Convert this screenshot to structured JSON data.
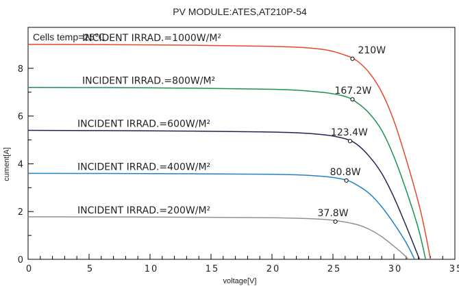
{
  "chart_data": {
    "type": "line",
    "title": "PV MODULE:ATES,AT210P-54",
    "xlabel": "voltage[V]",
    "ylabel": "cument[A]",
    "annotation": "Cells temp=25℃",
    "xlim": [
      0,
      35
    ],
    "ylim": [
      0,
      10
    ],
    "xticks": [
      0,
      5,
      10,
      15,
      20,
      25,
      30,
      35
    ],
    "yticks": [
      0,
      2,
      4,
      6,
      8
    ],
    "grid": false,
    "series": [
      {
        "name": "INCIDENT IRRAD.=1000W/M²",
        "color": "#e8452a",
        "voc": 33.0,
        "x": [
          0,
          10,
          20,
          24,
          26,
          27,
          28,
          29,
          30,
          31,
          32,
          32.5,
          33.0
        ],
        "y": [
          9.0,
          8.98,
          8.92,
          8.8,
          8.55,
          8.3,
          7.8,
          7.0,
          5.8,
          4.2,
          2.4,
          1.3,
          0
        ],
        "mpp": {
          "x": 26.6,
          "y": 8.4,
          "label": "210W"
        }
      },
      {
        "name": "INCIDENT IRRAD.=800W/M²",
        "color": "#1a9150",
        "voc": 32.6,
        "x": [
          0,
          10,
          20,
          24,
          26,
          27,
          28,
          29,
          30,
          31,
          32,
          32.6
        ],
        "y": [
          7.2,
          7.18,
          7.12,
          7.0,
          6.82,
          6.55,
          6.1,
          5.4,
          4.3,
          2.9,
          1.3,
          0
        ],
        "mpp": {
          "x": 26.6,
          "y": 6.7,
          "label": "167.2W"
        }
      },
      {
        "name": "INCIDENT IRRAD.=600W/M²",
        "color": "#25204f",
        "voc": 32.1,
        "x": [
          0,
          10,
          20,
          24,
          26,
          27,
          28,
          29,
          30,
          31,
          32.1
        ],
        "y": [
          5.4,
          5.38,
          5.33,
          5.23,
          5.05,
          4.8,
          4.3,
          3.6,
          2.6,
          1.4,
          0
        ],
        "mpp": {
          "x": 26.4,
          "y": 4.95,
          "label": "123.4W"
        }
      },
      {
        "name": "INCIDENT IRRAD.=400W/M²",
        "color": "#2080c8",
        "voc": 31.7,
        "x": [
          0,
          10,
          20,
          24,
          26,
          27,
          28,
          29,
          30,
          31,
          31.7
        ],
        "y": [
          3.6,
          3.59,
          3.56,
          3.48,
          3.33,
          3.1,
          2.75,
          2.2,
          1.5,
          0.7,
          0
        ],
        "mpp": {
          "x": 26.1,
          "y": 3.3,
          "label": "80.8W"
        }
      },
      {
        "name": "INCIDENT IRRAD.=200W/M²",
        "color": "#909090",
        "voc": 31.2,
        "x": [
          0,
          10,
          20,
          24,
          25.5,
          27,
          28,
          29,
          30,
          30.7,
          31.2
        ],
        "y": [
          1.78,
          1.77,
          1.74,
          1.68,
          1.6,
          1.45,
          1.25,
          0.95,
          0.55,
          0.25,
          0
        ],
        "mpp": {
          "x": 25.2,
          "y": 1.58,
          "label": "37.8W"
        }
      }
    ]
  }
}
